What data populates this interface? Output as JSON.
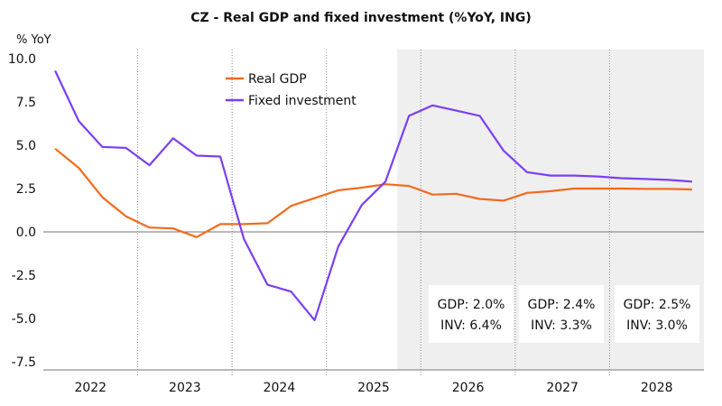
{
  "chart_data": {
    "type": "line",
    "title": "CZ - Real GDP and fixed investment (%YoY, ING)",
    "ylabel": "% YoY",
    "ylim": [
      -7.5,
      10.0
    ],
    "yticks": [
      "10.0",
      "7.5",
      "5.0",
      "2.5",
      "0.0",
      "-2.5",
      "-5.0",
      "-7.5"
    ],
    "years": [
      "2022",
      "2023",
      "2024",
      "2025",
      "2026",
      "2027",
      "2028"
    ],
    "quarters": [
      "Q1 2022",
      "Q2 2022",
      "Q3 2022",
      "Q4 2022",
      "Q1 2023",
      "Q2 2023",
      "Q3 2023",
      "Q4 2023",
      "Q1 2024",
      "Q2 2024",
      "Q3 2024",
      "Q4 2024",
      "Q1 2025",
      "Q2 2025",
      "Q3 2025",
      "Q4 2025",
      "Q1 2026",
      "Q2 2026",
      "Q3 2026",
      "Q4 2026",
      "Q1 2027",
      "Q2 2027",
      "Q3 2027",
      "Q4 2027",
      "Q1 2028",
      "Q2 2028",
      "Q3 2028",
      "Q4 2028"
    ],
    "forecast_start": "Q4 2025",
    "grid": "vertical dotted year separators, horizontal zero line",
    "legend_position": "top-center",
    "series": [
      {
        "name": "Real GDP",
        "color": "#f26b1d",
        "values": [
          4.8,
          3.7,
          2.0,
          0.9,
          0.25,
          0.2,
          -0.3,
          0.45,
          0.45,
          0.5,
          1.5,
          1.95,
          2.4,
          2.55,
          2.75,
          2.65,
          2.15,
          2.2,
          1.9,
          1.8,
          2.25,
          2.35,
          2.5,
          2.5,
          2.5,
          2.48,
          2.48,
          2.45
        ]
      },
      {
        "name": "Fixed investment",
        "color": "#7b3ff2",
        "values": [
          9.3,
          6.4,
          4.9,
          4.85,
          3.85,
          5.4,
          4.4,
          4.35,
          -0.4,
          -3.05,
          -3.45,
          -5.1,
          -0.85,
          1.55,
          2.9,
          6.7,
          7.3,
          7.0,
          6.7,
          4.7,
          3.45,
          3.25,
          3.25,
          3.2,
          3.1,
          3.05,
          3.0,
          2.9
        ]
      }
    ],
    "annotations": [
      {
        "gdp": "GDP: 2.0%",
        "inv": "INV: 6.4%"
      },
      {
        "gdp": "GDP: 2.4%",
        "inv": "INV: 3.3%"
      },
      {
        "gdp": "GDP: 2.5%",
        "inv": "INV: 3.0%"
      }
    ]
  }
}
